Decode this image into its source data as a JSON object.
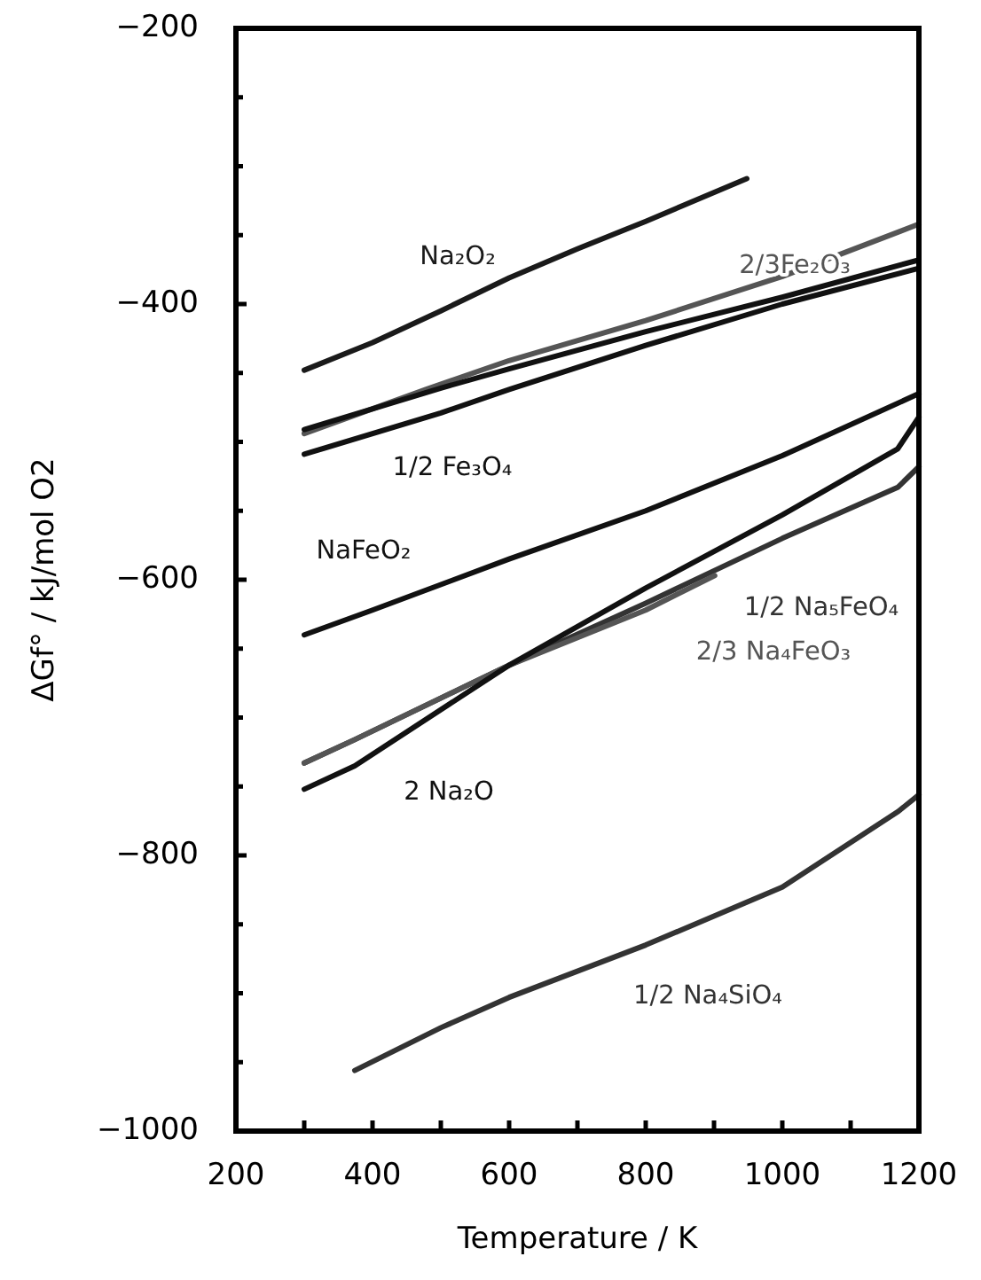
{
  "chart_data": {
    "type": "line",
    "xlabel": "Temperature / K",
    "ylabel": "ΔGf°  / kJ/mol O2",
    "xlim": [
      200,
      1200
    ],
    "ylim": [
      -1000,
      -200
    ],
    "xticks": [
      200,
      {
        "value": 300,
        "label": null
      },
      400,
      {
        "value": 500,
        "label": null
      },
      600,
      {
        "value": 700,
        "label": null
      },
      800,
      {
        "value": 900,
        "label": null
      },
      1000,
      {
        "value": 1100,
        "label": null
      },
      1200
    ],
    "yticks": [
      -1000,
      {
        "value": -950,
        "label": null
      },
      {
        "value": -900,
        "label": null
      },
      {
        "value": -850,
        "label": null
      },
      -800,
      {
        "value": -750,
        "label": null
      },
      {
        "value": -700,
        "label": null
      },
      {
        "value": -650,
        "label": null
      },
      -600,
      {
        "value": -550,
        "label": null
      },
      {
        "value": -500,
        "label": null
      },
      {
        "value": -450,
        "label": null
      },
      -400,
      {
        "value": -350,
        "label": null
      },
      {
        "value": -300,
        "label": null
      },
      {
        "value": -250,
        "label": null
      },
      -200
    ],
    "grid": false,
    "marker": "none",
    "line_style": "solid",
    "series": [
      {
        "name": "Na₂O₂",
        "color": "#1a1a1a",
        "x": [
          300,
          400,
          500,
          600,
          700,
          800,
          948
        ],
        "values": [
          -448,
          -428,
          -405,
          -381,
          -360,
          -340,
          -309
        ]
      },
      {
        "name": "2/3Fe₂O₃",
        "color": "#555555",
        "x": [
          300,
          478,
          600,
          800,
          1000,
          1200
        ],
        "values": [
          -494,
          -462,
          -441,
          -412,
          -380,
          -342
        ]
      },
      {
        "color": "#111111",
        "x": [
          300,
          500,
          600,
          800,
          1000,
          1200
        ],
        "values": [
          -491,
          -461,
          -447,
          -420,
          -395,
          -368
        ]
      },
      {
        "name": "1/2 Fe₃O₄",
        "color": "#111111",
        "x": [
          300,
          500,
          600,
          800,
          1000,
          1200
        ],
        "values": [
          -509,
          -479,
          -462,
          -430,
          -400,
          -374
        ]
      },
      {
        "name": "NaFeO₂",
        "color": "#111111",
        "x": [
          300,
          400,
          600,
          800,
          1000,
          1200
        ],
        "values": [
          -640,
          -622,
          -585,
          -550,
          -510,
          -465
        ]
      },
      {
        "name": "1/2 Na₅FeO₄",
        "color": "#333333",
        "x": [
          300,
          374,
          600,
          800,
          1000,
          1169,
          1200
        ],
        "values": [
          -733,
          -716,
          -662,
          -617,
          -570,
          -533,
          -518
        ]
      },
      {
        "name": "2/3 Na₄FeO₃",
        "color": "#555555",
        "x": [
          300,
          374,
          600,
          800,
          901
        ],
        "values": [
          -733,
          -716,
          -662,
          -622,
          -597
        ]
      },
      {
        "name": "2 Na₂O",
        "color": "#111111",
        "x": [
          300,
          374,
          600,
          800,
          1000,
          1169,
          1200
        ],
        "values": [
          -752,
          -735,
          -662,
          -606,
          -553,
          -505,
          -482
        ]
      },
      {
        "name": "1/2 Na₄SiO₄",
        "color": "#333333",
        "x": [
          374,
          500,
          600,
          800,
          1000,
          1170,
          1200
        ],
        "values": [
          -956,
          -925,
          -903,
          -865,
          -823,
          -768,
          -756
        ]
      }
    ]
  }
}
